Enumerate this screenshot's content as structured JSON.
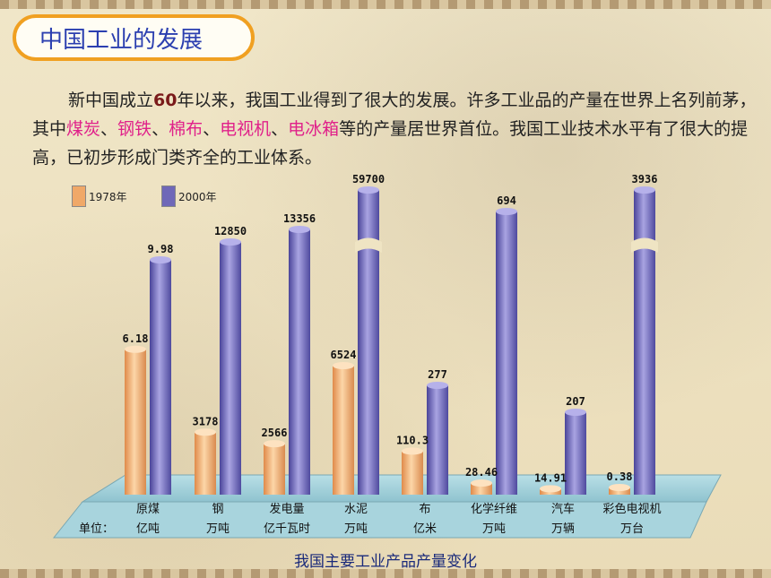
{
  "page": {
    "title": "中国工业的发展",
    "paragraph": [
      {
        "t": "新中国成立",
        "s": "plain"
      },
      {
        "t": "60",
        "s": "num"
      },
      {
        "t": "年以来，我国工业得到了很大的发展。许多工业品的产量在世界上名列前茅，其中",
        "s": "plain"
      },
      {
        "t": "煤炭",
        "s": "hl"
      },
      {
        "t": "、",
        "s": "plain"
      },
      {
        "t": "钢铁",
        "s": "hl"
      },
      {
        "t": "、",
        "s": "plain"
      },
      {
        "t": "棉布",
        "s": "hl"
      },
      {
        "t": "、",
        "s": "plain"
      },
      {
        "t": "电视机",
        "s": "hl"
      },
      {
        "t": "、",
        "s": "plain"
      },
      {
        "t": "电冰箱",
        "s": "hl"
      },
      {
        "t": "等的产量居世界首位。我国工业技术水平有了很大的提高，已初步形成门类齐全的工业体系。",
        "s": "plain"
      }
    ],
    "caption": "我国主要工业产品产量变化",
    "unit_prefix": "单位：",
    "colors": {
      "title_border": "#f0a021",
      "title_text": "#2b3fb0",
      "highlight": "#e0218a",
      "caption": "#1a2a7a"
    }
  },
  "chart_data": {
    "type": "bar",
    "legend_position": "top-left",
    "categories": [
      {
        "name": "原煤",
        "unit": "亿吨"
      },
      {
        "name": "钢",
        "unit": "万吨"
      },
      {
        "name": "发电量",
        "unit": "亿千瓦时"
      },
      {
        "name": "水泥",
        "unit": "万吨"
      },
      {
        "name": "布",
        "unit": "亿米"
      },
      {
        "name": "化学纤维",
        "unit": "万吨"
      },
      {
        "name": "汽车",
        "unit": "万辆"
      },
      {
        "name": "彩色电视机",
        "unit": "万台"
      }
    ],
    "series": [
      {
        "name": "1978年",
        "color": "#f0a868",
        "values": [
          6.18,
          3178,
          2566,
          6524,
          110.3,
          28.46,
          14.91,
          0.38
        ],
        "labels": [
          "6.18",
          "3178",
          "2566",
          "6524",
          "110.3",
          "28.46",
          "14.91",
          "0.38"
        ]
      },
      {
        "name": "2000年",
        "color": "#6f68b8",
        "values": [
          9.98,
          12850,
          13356,
          59700,
          277,
          694,
          207,
          3936
        ],
        "labels": [
          "9.98",
          "12850",
          "13356",
          "59700",
          "277",
          "694",
          "207",
          "3936"
        ]
      }
    ],
    "broken_axis_series2": [
      false,
      false,
      false,
      true,
      false,
      false,
      false,
      true
    ]
  }
}
